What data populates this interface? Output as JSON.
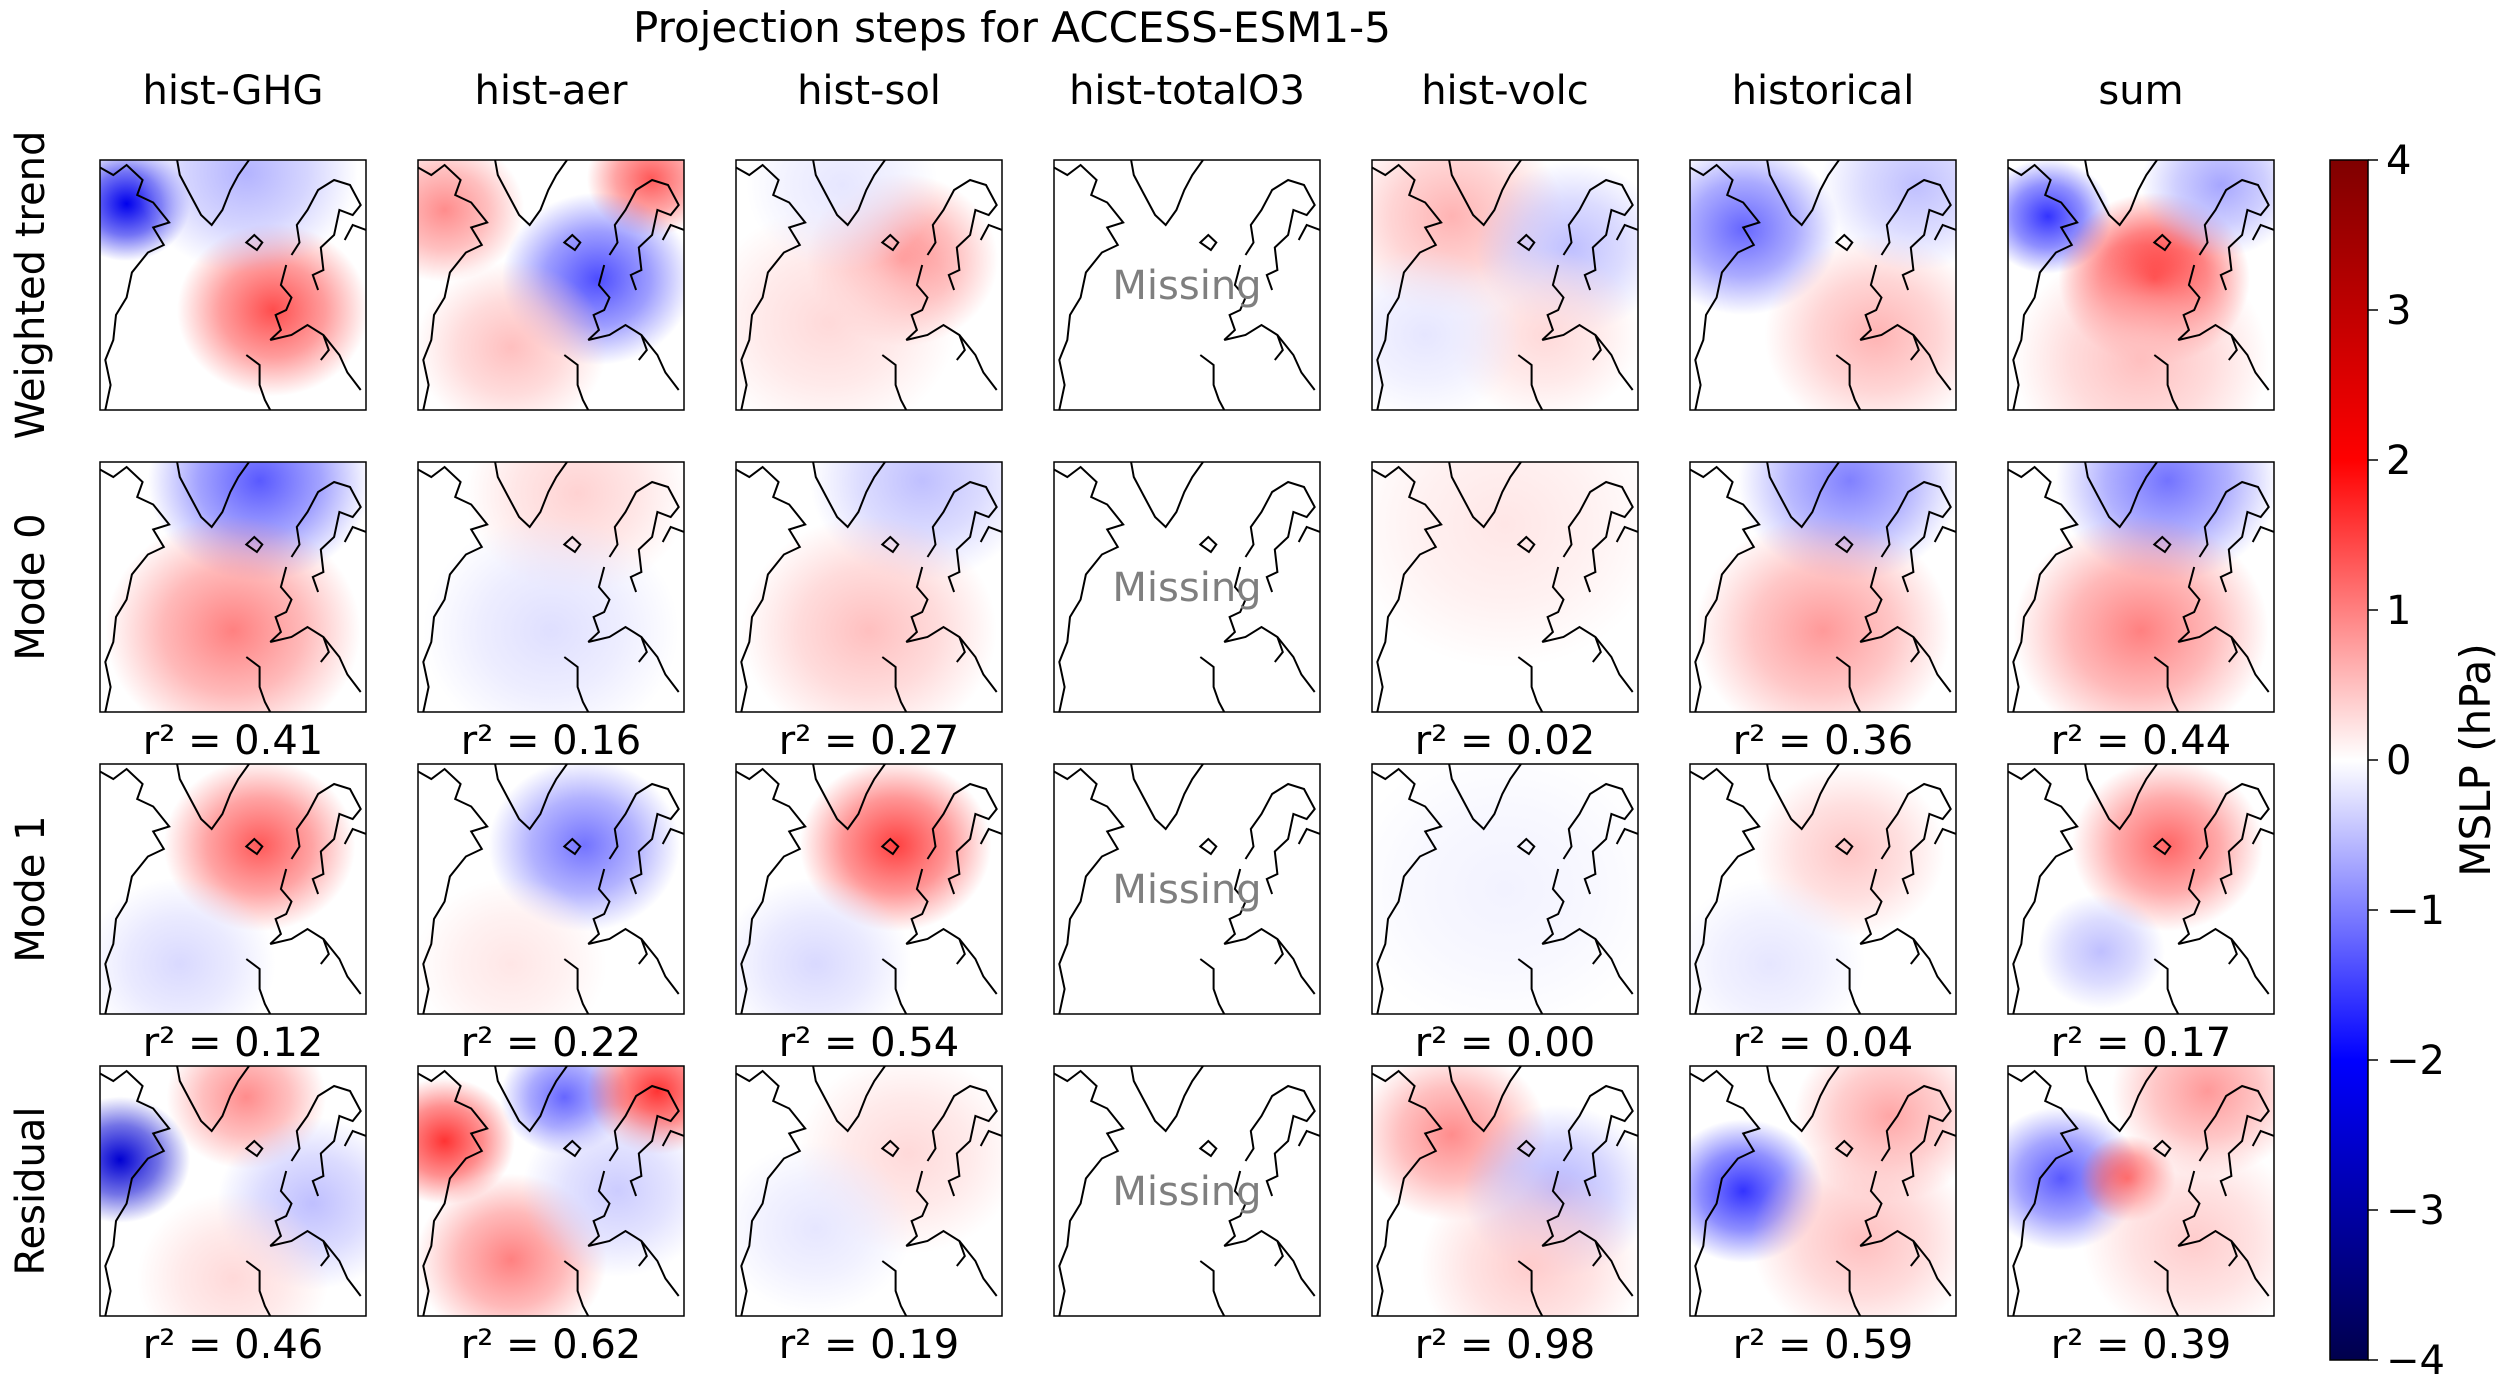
{
  "chart_data": {
    "type": "heatmap",
    "title": "Projection steps for ACCESS-ESM1-5",
    "columns": [
      "hist-GHG",
      "hist-aer",
      "hist-sol",
      "hist-totalO3",
      "hist-volc",
      "historical",
      "sum"
    ],
    "rows": [
      "Weighted trend",
      "Mode 0",
      "Mode 1",
      "Residual"
    ],
    "missing_label": "Missing",
    "missing_column": "hist-totalO3",
    "r2_prefix": "r² = ",
    "r2": {
      "Mode 0": [
        "0.41",
        "0.16",
        "0.27",
        null,
        "0.02",
        "0.36",
        "0.44"
      ],
      "Mode 1": [
        "0.12",
        "0.22",
        "0.54",
        null,
        "0.00",
        "0.04",
        "0.17"
      ],
      "Residual": [
        "0.46",
        "0.62",
        "0.19",
        null,
        "0.98",
        "0.59",
        "0.39"
      ]
    },
    "colorbar": {
      "label": "MSLP (hPa)",
      "range": [
        -4,
        4
      ],
      "ticks": [
        "4",
        "3",
        "2",
        "1",
        "0",
        "−1",
        "−2",
        "−3",
        "−4"
      ],
      "colormap": "seismic",
      "colors": [
        "#00004c",
        "#0000ff",
        "#ffffff",
        "#ff0000",
        "#7f0000"
      ]
    },
    "panels": {
      "Weighted trend": [
        [
          {
            "lon": -0.8,
            "lat": 0.65,
            "a": -2.2,
            "s": 0.2
          },
          {
            "lon": 0.3,
            "lat": -0.2,
            "a": 1.4,
            "s": 0.3
          },
          {
            "lon": 0.1,
            "lat": 0.9,
            "a": -0.6,
            "s": 0.35
          }
        ],
        [
          {
            "lon": -0.8,
            "lat": 0.6,
            "a": 0.9,
            "s": 0.25
          },
          {
            "lon": 0.75,
            "lat": 0.85,
            "a": 1.3,
            "s": 0.2
          },
          {
            "lon": 0.35,
            "lat": 0.05,
            "a": -1.4,
            "s": 0.3
          },
          {
            "lon": -0.3,
            "lat": -0.5,
            "a": 0.5,
            "s": 0.3
          }
        ],
        [
          {
            "lon": 0.25,
            "lat": 0.2,
            "a": 0.9,
            "s": 0.3
          },
          {
            "lon": -0.3,
            "lat": -0.3,
            "a": 0.3,
            "s": 0.4
          },
          {
            "lon": -0.2,
            "lat": 0.8,
            "a": -0.2,
            "s": 0.3
          }
        ],
        [],
        [
          {
            "lon": -0.4,
            "lat": 0.55,
            "a": 0.6,
            "s": 0.35
          },
          {
            "lon": 0.5,
            "lat": 0.3,
            "a": -0.5,
            "s": 0.3
          },
          {
            "lon": 0.3,
            "lat": -0.4,
            "a": 0.3,
            "s": 0.3
          },
          {
            "lon": -0.6,
            "lat": -0.4,
            "a": -0.2,
            "s": 0.3
          }
        ],
        [
          {
            "lon": -0.6,
            "lat": 0.45,
            "a": -1.2,
            "s": 0.3
          },
          {
            "lon": 0.4,
            "lat": -0.4,
            "a": 0.6,
            "s": 0.35
          },
          {
            "lon": 0.7,
            "lat": 0.8,
            "a": -0.5,
            "s": 0.3
          }
        ],
        [
          {
            "lon": -0.7,
            "lat": 0.55,
            "a": -1.6,
            "s": 0.2
          },
          {
            "lon": 0.1,
            "lat": 0.05,
            "a": 1.8,
            "s": 0.3
          },
          {
            "lon": 0.6,
            "lat": 0.8,
            "a": -0.7,
            "s": 0.25
          },
          {
            "lon": 0.0,
            "lat": -0.6,
            "a": 0.5,
            "s": 0.4
          }
        ]
      ],
      "Mode 0": [
        [
          {
            "lon": 0.2,
            "lat": 0.85,
            "a": -1.3,
            "s": 0.35
          },
          {
            "lon": 0.0,
            "lat": -0.35,
            "a": 1.0,
            "s": 0.4
          }
        ],
        [
          {
            "lon": 0.2,
            "lat": 0.75,
            "a": 0.35,
            "s": 0.35
          },
          {
            "lon": 0.0,
            "lat": -0.35,
            "a": -0.25,
            "s": 0.4
          }
        ],
        [
          {
            "lon": 0.4,
            "lat": 0.85,
            "a": -0.5,
            "s": 0.35
          },
          {
            "lon": 0.0,
            "lat": -0.35,
            "a": 0.5,
            "s": 0.4
          }
        ],
        [],
        [
          {
            "lon": 0.0,
            "lat": 0.5,
            "a": 0.2,
            "s": 0.5
          }
        ],
        [
          {
            "lon": 0.2,
            "lat": 0.85,
            "a": -1.0,
            "s": 0.35
          },
          {
            "lon": 0.0,
            "lat": -0.35,
            "a": 0.8,
            "s": 0.4
          }
        ],
        [
          {
            "lon": 0.2,
            "lat": 0.85,
            "a": -1.1,
            "s": 0.35
          },
          {
            "lon": 0.0,
            "lat": -0.35,
            "a": 1.0,
            "s": 0.4
          }
        ]
      ],
      "Mode 1": [
        [
          {
            "lon": 0.2,
            "lat": 0.35,
            "a": 1.3,
            "s": 0.3
          },
          {
            "lon": -0.4,
            "lat": -0.6,
            "a": -0.3,
            "s": 0.3
          }
        ],
        [
          {
            "lon": 0.25,
            "lat": 0.35,
            "a": -1.1,
            "s": 0.3
          },
          {
            "lon": -0.3,
            "lat": -0.6,
            "a": 0.2,
            "s": 0.3
          }
        ],
        [
          {
            "lon": 0.2,
            "lat": 0.35,
            "a": 1.5,
            "s": 0.3
          },
          {
            "lon": -0.4,
            "lat": -0.6,
            "a": -0.3,
            "s": 0.3
          }
        ],
        [],
        [
          {
            "lon": 0.0,
            "lat": 0.0,
            "a": -0.1,
            "s": 0.5
          }
        ],
        [
          {
            "lon": 0.2,
            "lat": 0.3,
            "a": 0.45,
            "s": 0.3
          },
          {
            "lon": -0.4,
            "lat": -0.6,
            "a": -0.2,
            "s": 0.3
          }
        ],
        [
          {
            "lon": 0.2,
            "lat": 0.35,
            "a": 1.2,
            "s": 0.3
          },
          {
            "lon": -0.3,
            "lat": -0.5,
            "a": -0.5,
            "s": 0.2
          }
        ]
      ],
      "Residual": [
        [
          {
            "lon": -0.85,
            "lat": 0.25,
            "a": -2.5,
            "s": 0.22
          },
          {
            "lon": 0.1,
            "lat": 0.75,
            "a": 0.9,
            "s": 0.25
          },
          {
            "lon": 0.6,
            "lat": -0.1,
            "a": -0.5,
            "s": 0.3
          },
          {
            "lon": 0.0,
            "lat": -0.7,
            "a": 0.3,
            "s": 0.3
          }
        ],
        [
          {
            "lon": -0.8,
            "lat": 0.4,
            "a": 1.6,
            "s": 0.22
          },
          {
            "lon": 0.1,
            "lat": 0.75,
            "a": -1.2,
            "s": 0.2
          },
          {
            "lon": 0.8,
            "lat": 0.8,
            "a": 1.6,
            "s": 0.22
          },
          {
            "lon": -0.3,
            "lat": -0.55,
            "a": 1.0,
            "s": 0.3
          },
          {
            "lon": 0.5,
            "lat": 0.0,
            "a": -0.4,
            "s": 0.3
          }
        ],
        [
          {
            "lon": 0.3,
            "lat": 0.3,
            "a": 0.3,
            "s": 0.35
          },
          {
            "lon": -0.4,
            "lat": -0.3,
            "a": -0.2,
            "s": 0.3
          }
        ],
        [],
        [
          {
            "lon": -0.4,
            "lat": 0.45,
            "a": 0.9,
            "s": 0.3
          },
          {
            "lon": 0.4,
            "lat": 0.0,
            "a": -0.6,
            "s": 0.3
          },
          {
            "lon": 0.2,
            "lat": -0.6,
            "a": 0.4,
            "s": 0.35
          }
        ],
        [
          {
            "lon": -0.6,
            "lat": 0.0,
            "a": -1.6,
            "s": 0.25
          },
          {
            "lon": 0.5,
            "lat": 0.6,
            "a": 0.7,
            "s": 0.3
          },
          {
            "lon": 0.3,
            "lat": -0.4,
            "a": 0.5,
            "s": 0.35
          }
        ],
        [
          {
            "lon": -0.6,
            "lat": 0.1,
            "a": -1.3,
            "s": 0.25
          },
          {
            "lon": -0.1,
            "lat": 0.1,
            "a": 1.3,
            "s": 0.15
          },
          {
            "lon": 0.5,
            "lat": 0.8,
            "a": 0.8,
            "s": 0.3
          },
          {
            "lon": 0.4,
            "lat": -0.4,
            "a": 0.4,
            "s": 0.35
          }
        ]
      ]
    }
  }
}
